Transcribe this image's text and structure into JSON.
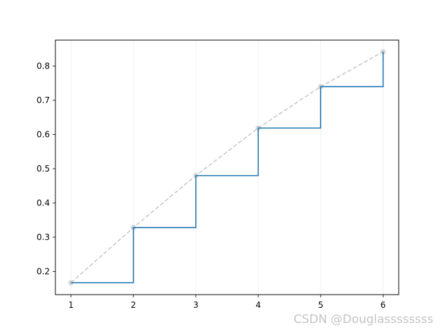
{
  "chart_data": {
    "type": "line",
    "title": "",
    "xlabel": "",
    "ylabel": "",
    "x": [
      1,
      2,
      3,
      4,
      5,
      6
    ],
    "xlim": [
      0.75,
      6.25
    ],
    "ylim": [
      0.132,
      0.876
    ],
    "xticks": [
      1,
      2,
      3,
      4,
      5,
      6
    ],
    "yticks": [
      0.2,
      0.3,
      0.4,
      0.5,
      0.6,
      0.7,
      0.8
    ],
    "grid": "vertical-only",
    "legend": "none",
    "series": [
      {
        "style": "step-post",
        "color": "#1f77b4",
        "values": [
          0.167,
          0.328,
          0.48,
          0.619,
          0.74,
          0.842
        ]
      },
      {
        "style": "dashed-with-markers",
        "color": "#c8c8c8",
        "values": [
          0.167,
          0.328,
          0.48,
          0.619,
          0.74,
          0.842
        ]
      }
    ]
  },
  "watermark": "CSDN @Douglassssssss"
}
